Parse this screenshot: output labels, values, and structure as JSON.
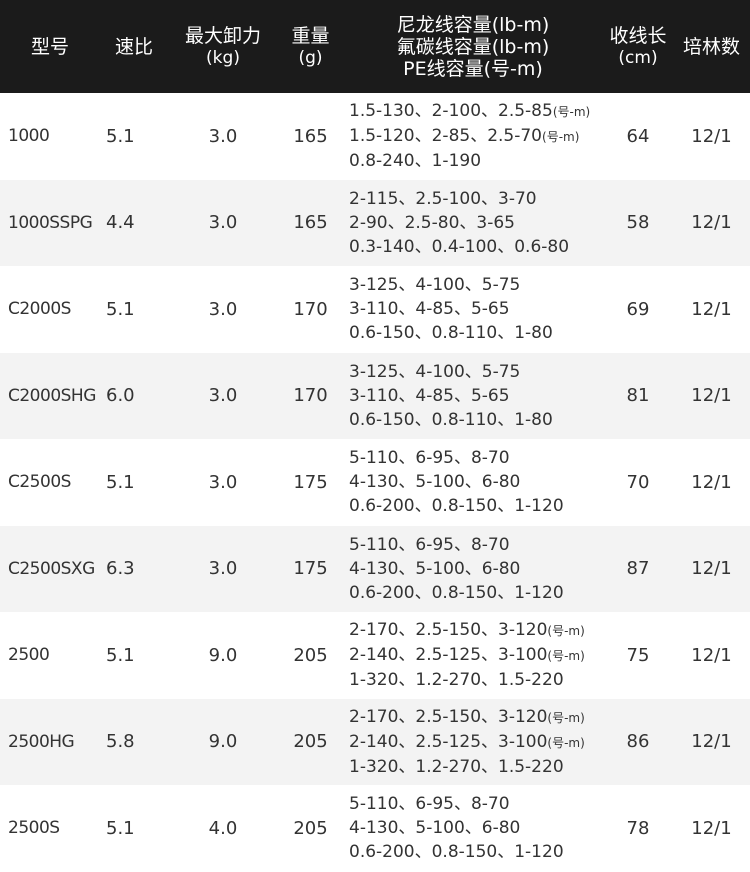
{
  "header": {
    "model": "型号",
    "ratio": "速比",
    "drag": "最大卸力",
    "drag_unit": "(kg)",
    "weight": "重量",
    "weight_unit": "(g)",
    "capacity_nylon": "尼龙线容量(lb-m)",
    "capacity_fluoro": "氟碳线容量(lb-m)",
    "capacity_pe": "PE线容量(号-m)",
    "retrieve": "收线长",
    "retrieve_unit": "(cm)",
    "bearings": "培林数"
  },
  "rows": [
    {
      "model": "1000",
      "ratio": "5.1",
      "drag": "3.0",
      "weight": "165",
      "nylon": "1.5-130、2-100、2.5-85",
      "nylon_unit": "(号-m)",
      "fluoro": "1.5-120、2-85、2.5-70",
      "fluoro_unit": "(号-m)",
      "pe": "0.8-240、1-190",
      "retrieve": "64",
      "bearings": "12/1"
    },
    {
      "model": "1000SSPG",
      "ratio": "4.4",
      "drag": "3.0",
      "weight": "165",
      "nylon": "2-115、2.5-100、3-70",
      "fluoro": "2-90、2.5-80、3-65",
      "pe": "0.3-140、0.4-100、0.6-80",
      "retrieve": "58",
      "bearings": "12/1"
    },
    {
      "model": "C2000S",
      "ratio": "5.1",
      "drag": "3.0",
      "weight": "170",
      "nylon": "3-125、4-100、5-75",
      "fluoro": "3-110、4-85、5-65",
      "pe": "0.6-150、0.8-110、1-80",
      "retrieve": "69",
      "bearings": "12/1"
    },
    {
      "model": "C2000SHG",
      "ratio": "6.0",
      "drag": "3.0",
      "weight": "170",
      "nylon": "3-125、4-100、5-75",
      "fluoro": "3-110、4-85、5-65",
      "pe": "0.6-150、0.8-110、1-80",
      "retrieve": "81",
      "bearings": "12/1"
    },
    {
      "model": "C2500S",
      "ratio": "5.1",
      "drag": "3.0",
      "weight": "175",
      "nylon": "5-110、6-95、8-70",
      "fluoro": "4-130、5-100、6-80",
      "pe": "0.6-200、0.8-150、1-120",
      "retrieve": "70",
      "bearings": "12/1"
    },
    {
      "model": "C2500SXG",
      "ratio": "6.3",
      "drag": "3.0",
      "weight": "175",
      "nylon": "5-110、6-95、8-70",
      "fluoro": "4-130、5-100、6-80",
      "pe": "0.6-200、0.8-150、1-120",
      "retrieve": "87",
      "bearings": "12/1"
    },
    {
      "model": "2500",
      "ratio": "5.1",
      "drag": "9.0",
      "weight": "205",
      "nylon": "2-170、2.5-150、3-120",
      "nylon_unit": "(号-m)",
      "fluoro": "2-140、2.5-125、3-100",
      "fluoro_unit": "(号-m)",
      "pe": "1-320、1.2-270、1.5-220",
      "retrieve": "75",
      "bearings": "12/1"
    },
    {
      "model": "2500HG",
      "ratio": "5.8",
      "drag": "9.0",
      "weight": "205",
      "nylon": "2-170、2.5-150、3-120",
      "nylon_unit": "(号-m)",
      "fluoro": "2-140、2.5-125、3-100",
      "fluoro_unit": "(号-m)",
      "pe": "1-320、1.2-270、1.5-220",
      "retrieve": "86",
      "bearings": "12/1"
    },
    {
      "model": "2500S",
      "ratio": "5.1",
      "drag": "4.0",
      "weight": "205",
      "nylon": "5-110、6-95、8-70",
      "fluoro": "4-130、5-100、6-80",
      "pe": "0.6-200、0.8-150、1-120",
      "retrieve": "78",
      "bearings": "12/1"
    }
  ]
}
